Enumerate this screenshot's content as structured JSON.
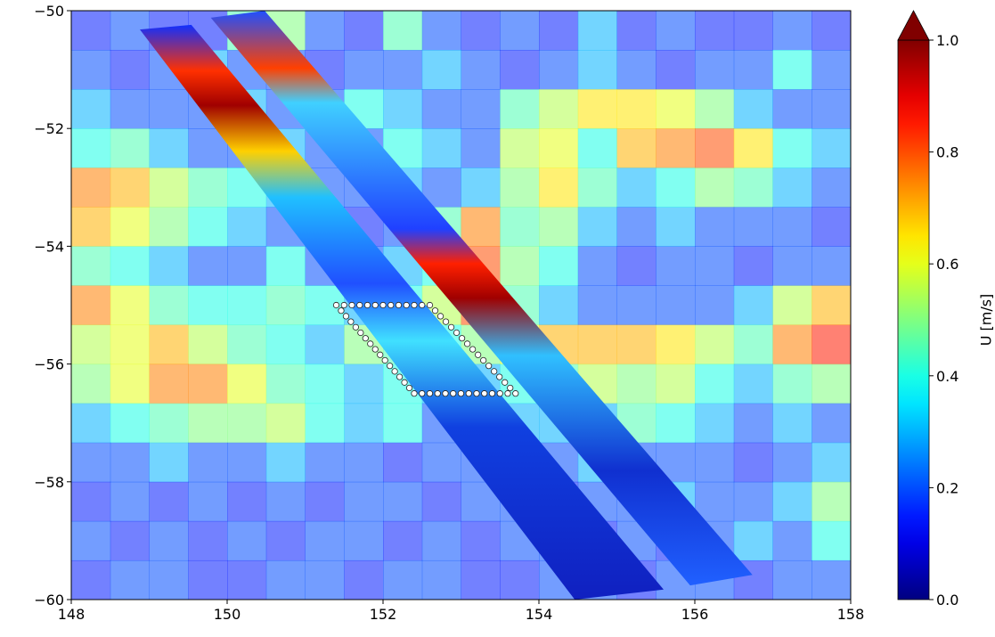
{
  "chart_data": {
    "type": "heatmap",
    "colorbar_label": "U [m/s]",
    "clim": [
      0,
      1
    ],
    "cticks": [
      {
        "value": 0,
        "label": "0.0"
      },
      {
        "value": 0.2,
        "label": "0.2"
      },
      {
        "value": 0.4,
        "label": "0.4"
      },
      {
        "value": 0.6,
        "label": "0.6"
      },
      {
        "value": 0.8,
        "label": "0.8"
      },
      {
        "value": 1,
        "label": "1.0"
      }
    ],
    "xlim": [
      148,
      158
    ],
    "ylim": [
      -60,
      -50
    ],
    "xticks": [
      148,
      150,
      152,
      154,
      156,
      158
    ],
    "yticks": [
      {
        "value": -50,
        "label": "−50"
      },
      {
        "value": -52,
        "label": "−52"
      },
      {
        "value": -54,
        "label": "−54"
      },
      {
        "value": -56,
        "label": "−56"
      },
      {
        "value": -58,
        "label": "−58"
      },
      {
        "value": -60,
        "label": "−60"
      }
    ],
    "x": [
      148.25,
      148.75,
      149.25,
      149.75,
      150.25,
      150.75,
      151.25,
      151.75,
      152.25,
      152.75,
      153.25,
      153.75,
      154.25,
      154.75,
      155.25,
      155.75,
      156.25,
      156.75,
      157.25,
      157.75
    ],
    "y": [
      -50.333,
      -51,
      -51.667,
      -52.333,
      -53,
      -53.667,
      -54.333,
      -55,
      -55.667,
      -56.333,
      -57,
      -57.667,
      -58.333,
      -59,
      -59.667
    ],
    "z": [
      [
        0.15,
        0.2,
        0.15,
        0.15,
        0.45,
        0.5,
        0.2,
        0.15,
        0.45,
        0.2,
        0.15,
        0.2,
        0.15,
        0.3,
        0.15,
        0.2,
        0.15,
        0.15,
        0.2,
        0.15
      ],
      [
        0.2,
        0.15,
        0.2,
        0.3,
        0.2,
        0.2,
        0.15,
        0.2,
        0.2,
        0.3,
        0.2,
        0.15,
        0.2,
        0.3,
        0.2,
        0.15,
        0.2,
        0.2,
        0.4,
        0.2
      ],
      [
        0.3,
        0.2,
        0.2,
        0.2,
        0.3,
        0.2,
        0.2,
        0.4,
        0.3,
        0.2,
        0.2,
        0.45,
        0.55,
        0.65,
        0.65,
        0.6,
        0.5,
        0.3,
        0.2,
        0.2
      ],
      [
        0.4,
        0.45,
        0.3,
        0.2,
        0.2,
        0.3,
        0.2,
        0.2,
        0.4,
        0.3,
        0.2,
        0.55,
        0.6,
        0.4,
        0.7,
        0.75,
        0.8,
        0.65,
        0.4,
        0.3
      ],
      [
        0.75,
        0.7,
        0.55,
        0.45,
        0.4,
        0.3,
        0.2,
        0.2,
        0.3,
        0.2,
        0.3,
        0.5,
        0.65,
        0.45,
        0.3,
        0.4,
        0.5,
        0.45,
        0.3,
        0.2
      ],
      [
        0.7,
        0.6,
        0.5,
        0.4,
        0.3,
        0.2,
        0.2,
        0.15,
        0.2,
        0.45,
        0.75,
        0.45,
        0.5,
        0.3,
        0.2,
        0.3,
        0.2,
        0.2,
        0.2,
        0.15
      ],
      [
        0.45,
        0.4,
        0.3,
        0.2,
        0.2,
        0.4,
        0.2,
        0.2,
        0.3,
        0.4,
        0.8,
        0.5,
        0.4,
        0.2,
        0.15,
        0.2,
        0.2,
        0.15,
        0.2,
        0.2
      ],
      [
        0.75,
        0.6,
        0.45,
        0.4,
        0.4,
        0.45,
        0.4,
        0.3,
        0.4,
        0.55,
        0.8,
        0.45,
        0.3,
        0.2,
        0.2,
        0.2,
        0.2,
        0.3,
        0.55,
        0.7
      ],
      [
        0.55,
        0.6,
        0.7,
        0.55,
        0.45,
        0.4,
        0.3,
        0.5,
        0.45,
        0.4,
        0.5,
        0.6,
        0.7,
        0.7,
        0.7,
        0.65,
        0.55,
        0.45,
        0.75,
        0.85
      ],
      [
        0.5,
        0.6,
        0.75,
        0.75,
        0.6,
        0.45,
        0.4,
        0.3,
        0.4,
        0.3,
        0.3,
        0.4,
        0.45,
        0.55,
        0.5,
        0.55,
        0.4,
        0.3,
        0.45,
        0.5
      ],
      [
        0.3,
        0.4,
        0.45,
        0.5,
        0.5,
        0.55,
        0.4,
        0.3,
        0.4,
        0.2,
        0.2,
        0.3,
        0.3,
        0.3,
        0.45,
        0.4,
        0.3,
        0.2,
        0.3,
        0.2
      ],
      [
        0.2,
        0.2,
        0.3,
        0.2,
        0.2,
        0.3,
        0.2,
        0.2,
        0.15,
        0.2,
        0.2,
        0.15,
        0.2,
        0.3,
        0.2,
        0.2,
        0.2,
        0.15,
        0.2,
        0.3
      ],
      [
        0.15,
        0.2,
        0.15,
        0.2,
        0.15,
        0.2,
        0.15,
        0.2,
        0.2,
        0.15,
        0.2,
        0.2,
        0.15,
        0.2,
        0.2,
        0.3,
        0.2,
        0.2,
        0.3,
        0.5
      ],
      [
        0.2,
        0.15,
        0.2,
        0.15,
        0.2,
        0.15,
        0.2,
        0.2,
        0.15,
        0.2,
        0.15,
        0.2,
        0.2,
        0.15,
        0.2,
        0.15,
        0.2,
        0.3,
        0.2,
        0.4
      ],
      [
        0.15,
        0.2,
        0.2,
        0.15,
        0.15,
        0.2,
        0.2,
        0.15,
        0.2,
        0.2,
        0.15,
        0.15,
        0.2,
        0.2,
        0.15,
        0.2,
        0.2,
        0.15,
        0.2,
        0.2
      ]
    ],
    "swaths": [
      {
        "lon": [
          148.88,
          149.54,
          155.6,
          154.46
        ],
        "lat": [
          -50.32,
          -50.24,
          -59.83,
          -60
        ]
      },
      {
        "lon": [
          149.79,
          150.48,
          156.74,
          155.94
        ],
        "lat": [
          -50.12,
          -50,
          -59.58,
          -59.76
        ]
      }
    ],
    "box": {
      "lon": [
        151.4,
        152.6,
        153.7,
        152.4
      ],
      "lat": [
        -55,
        -55,
        -56.5,
        -56.5
      ]
    }
  }
}
